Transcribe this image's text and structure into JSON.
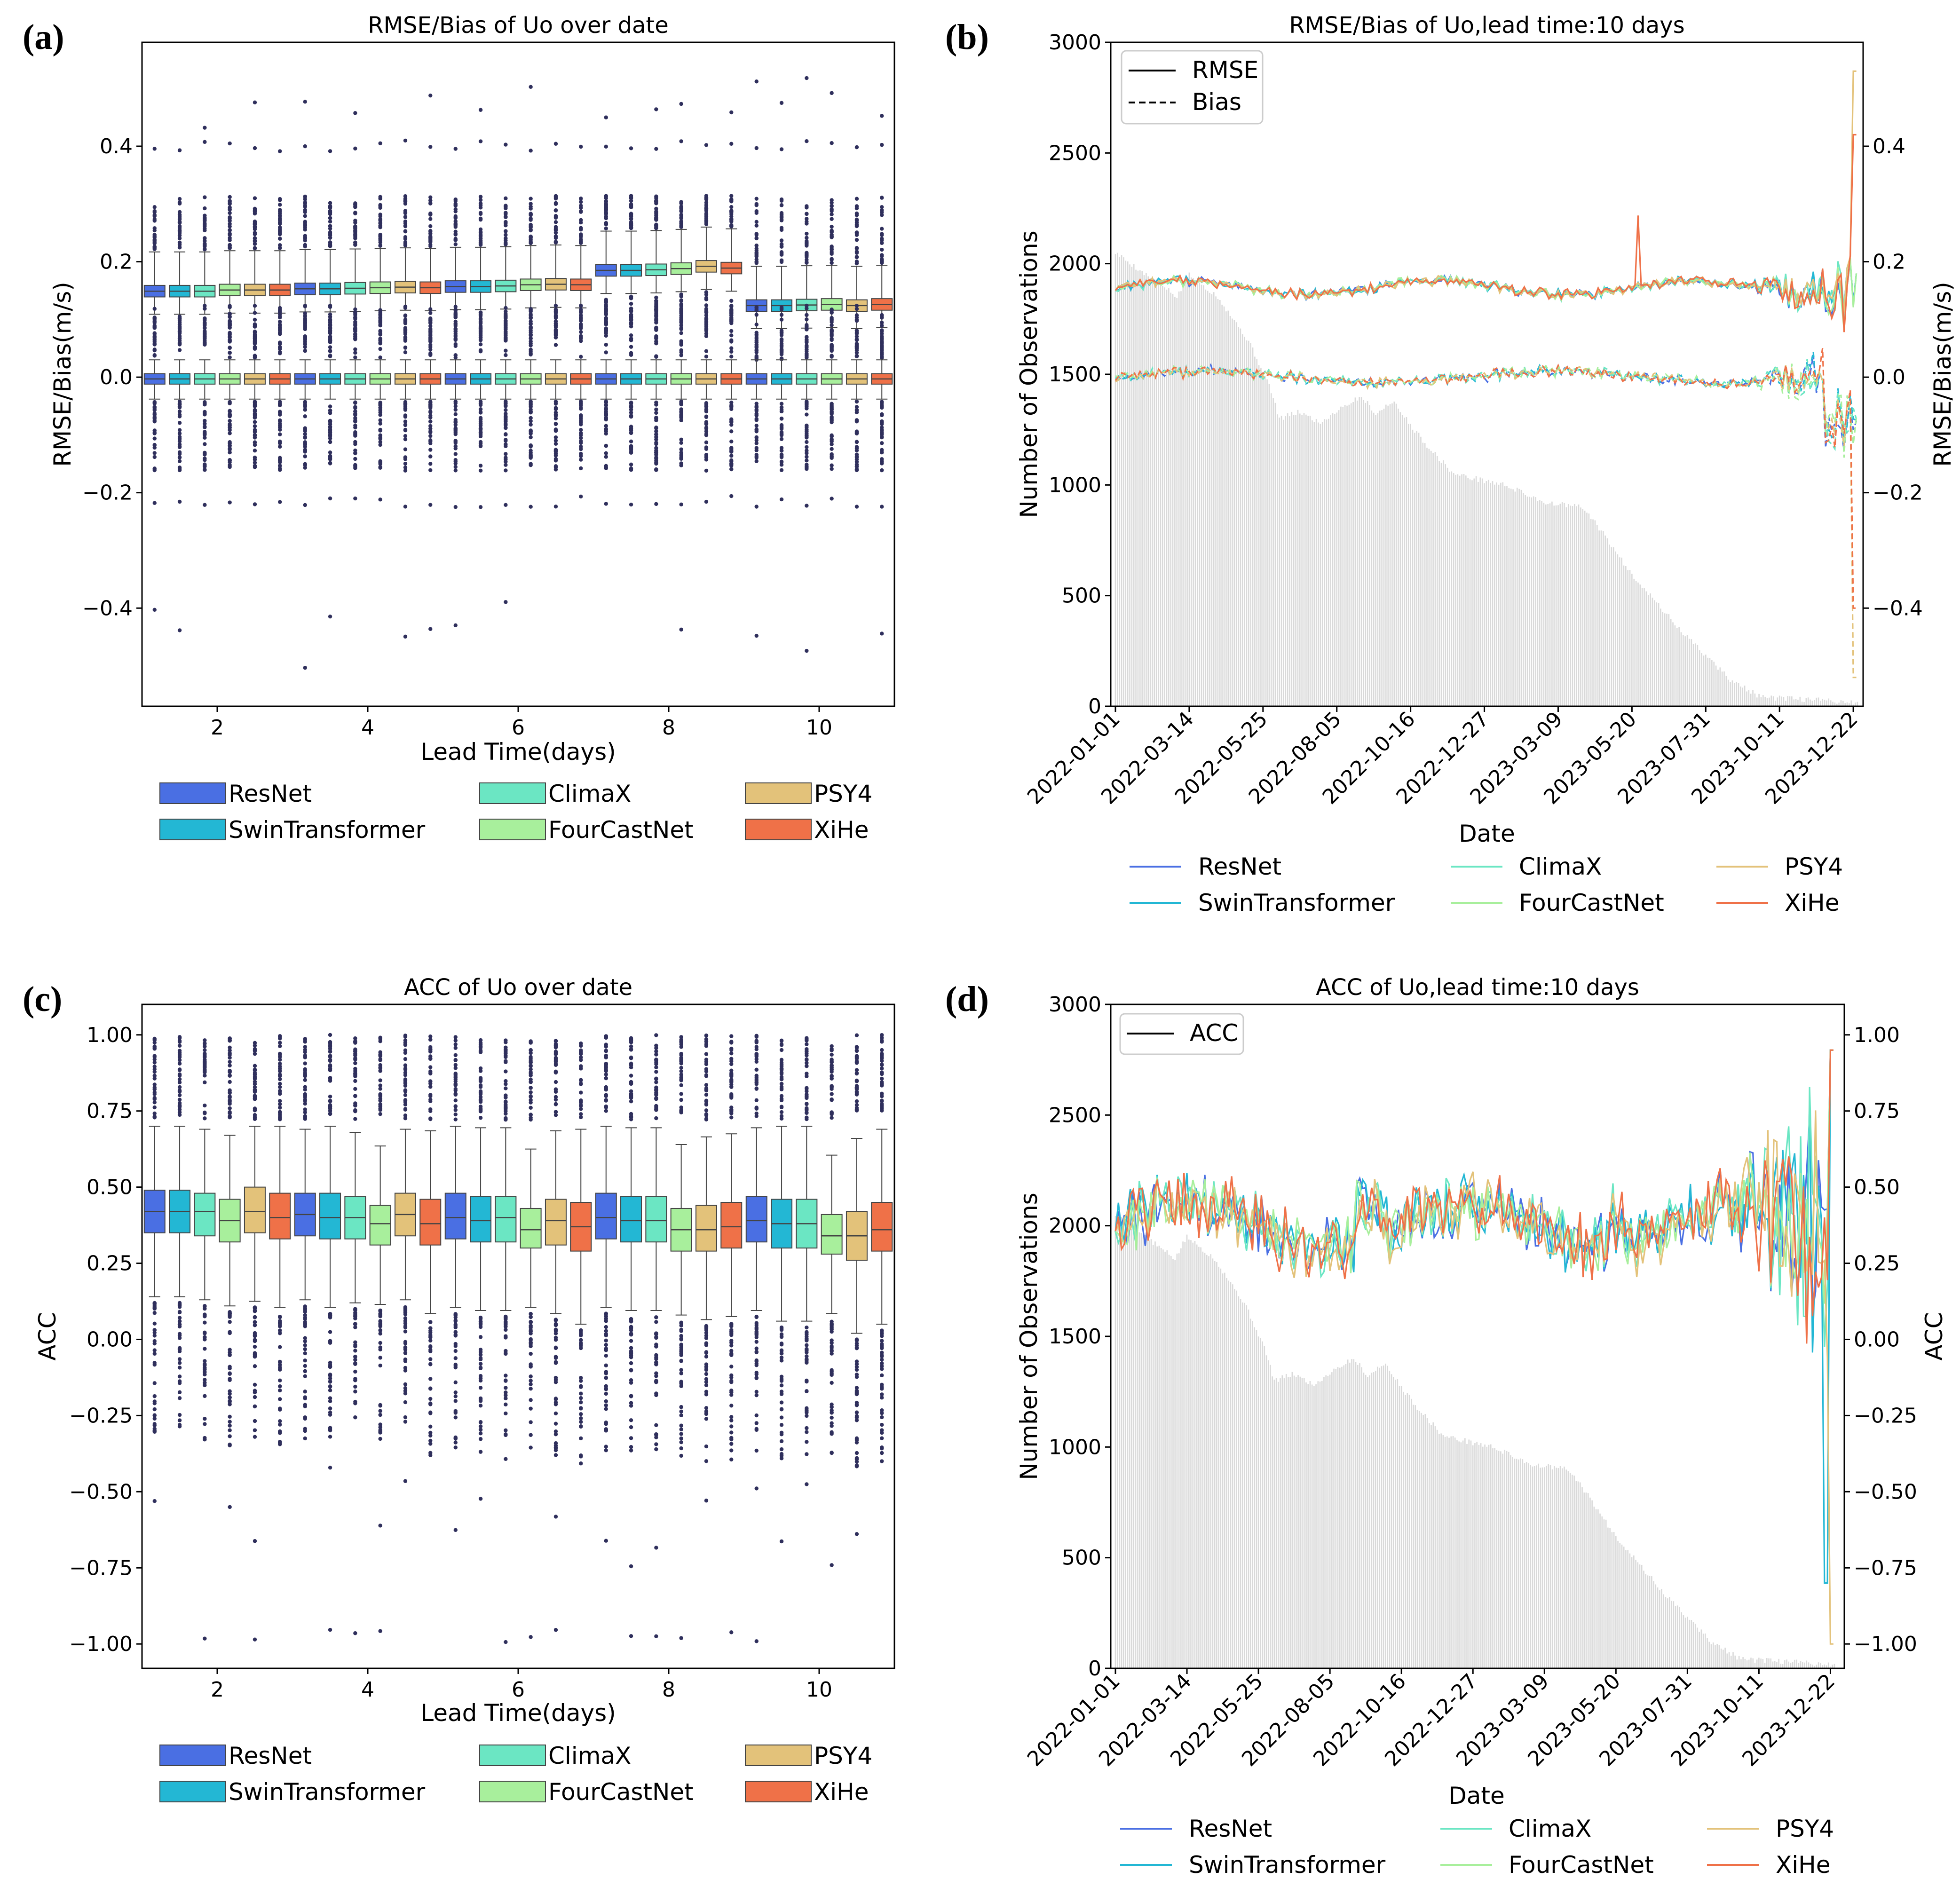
{
  "colors": {
    "ResNet": "#4a6fe3",
    "SwinTransformer": "#23b7d4",
    "ClimaX": "#6be6c3",
    "FourCastNet": "#a8ef9c",
    "PSY4": "#e3c27a",
    "XiHe": "#ef7148",
    "bars": "#d9d9d9",
    "outlier": "#2f2f5c"
  },
  "panels": {
    "a": {
      "label": "(a)"
    },
    "b": {
      "label": "(b)"
    },
    "c": {
      "label": "(c)"
    },
    "d": {
      "label": "(d)"
    }
  },
  "legend": {
    "models": [
      "ResNet",
      "SwinTransformer",
      "ClimaX",
      "FourCastNet",
      "PSY4",
      "XiHe"
    ],
    "rmse": "RMSE",
    "bias": "Bias",
    "acc": "ACC"
  },
  "chart_data": [
    {
      "id": "a",
      "type": "box",
      "title": "RMSE/Bias of Uo over date",
      "xlabel": "Lead Time(days)",
      "ylabel": "RMSE/Bias(m/s)",
      "categories": [
        2,
        4,
        6,
        8,
        10
      ],
      "xlim": [
        1,
        11
      ],
      "ylim": [
        -0.57,
        0.58
      ],
      "yticks": [
        -0.4,
        -0.2,
        0.0,
        0.2,
        0.4
      ],
      "ytick_labels": [
        "−0.4",
        "−0.2",
        "0.0",
        "0.2",
        "0.4"
      ],
      "xtick_labels": [
        "2",
        "4",
        "6",
        "8",
        "10"
      ],
      "series": [
        {
          "name": "ResNet",
          "rmse": [
            0.147,
            0.151,
            0.155,
            0.183,
            0.122
          ],
          "bias": [
            -0.01,
            -0.004,
            0.0,
            0.02,
            -0.03
          ]
        },
        {
          "name": "SwinTransformer",
          "rmse": [
            0.147,
            0.151,
            0.155,
            0.183,
            0.122
          ],
          "bias": [
            -0.011,
            -0.005,
            0.0,
            0.02,
            -0.03
          ]
        },
        {
          "name": "ClimaX",
          "rmse": [
            0.147,
            0.152,
            0.156,
            0.184,
            0.123
          ],
          "bias": [
            -0.011,
            -0.005,
            -0.001,
            0.02,
            -0.03
          ]
        },
        {
          "name": "FourCastNet",
          "rmse": [
            0.149,
            0.153,
            0.158,
            0.186,
            0.124
          ],
          "bias": [
            -0.01,
            -0.004,
            0.0,
            0.02,
            -0.03
          ]
        },
        {
          "name": "PSY4",
          "rmse": [
            0.149,
            0.154,
            0.159,
            0.19,
            0.122
          ],
          "bias": [
            -0.011,
            -0.005,
            0.0,
            0.02,
            -0.03
          ]
        },
        {
          "name": "XiHe",
          "rmse": [
            0.149,
            0.153,
            0.158,
            0.187,
            0.124
          ],
          "bias": [
            -0.012,
            -0.006,
            -0.001,
            0.02,
            -0.03
          ]
        }
      ]
    },
    {
      "id": "b",
      "type": "line+bar",
      "title": "RMSE/Bias of Uo,lead time:10 days",
      "xlabel": "Date",
      "ylabel_left": "Number of Observations",
      "ylabel_right": "RMSE/Bias(m/s)",
      "ylim_left": [
        0,
        3000
      ],
      "yticks_left": [
        0,
        500,
        1000,
        1500,
        2000,
        2500,
        3000
      ],
      "ylim_right": [
        -0.57,
        0.58
      ],
      "yticks_right": [
        -0.4,
        -0.2,
        0.0,
        0.2,
        0.4
      ],
      "ytick_labels_right": [
        "−0.4",
        "−0.2",
        "0.0",
        "0.2",
        "0.4"
      ],
      "x_dates": [
        "2022-01-01",
        "2022-03-14",
        "2022-05-25",
        "2022-08-05",
        "2022-10-16",
        "2022-12-27",
        "2023-03-09",
        "2023-05-20",
        "2023-07-31",
        "2023-10-11",
        "2023-12-22"
      ],
      "observation_profile": [
        [
          0,
          2050
        ],
        [
          30,
          1950
        ],
        [
          60,
          1850
        ],
        [
          72,
          1950
        ],
        [
          100,
          1850
        ],
        [
          130,
          1650
        ],
        [
          150,
          1450
        ],
        [
          160,
          1300
        ],
        [
          180,
          1330
        ],
        [
          200,
          1280
        ],
        [
          220,
          1350
        ],
        [
          240,
          1400
        ],
        [
          255,
          1320
        ],
        [
          270,
          1380
        ],
        [
          300,
          1200
        ],
        [
          330,
          1050
        ],
        [
          380,
          1000
        ],
        [
          420,
          920
        ],
        [
          455,
          900
        ],
        [
          470,
          820
        ],
        [
          500,
          620
        ],
        [
          550,
          350
        ],
        [
          600,
          120
        ],
        [
          630,
          40
        ],
        [
          700,
          25
        ],
        [
          725,
          15
        ]
      ],
      "rmse_mean": 0.16,
      "bias_mean": 0.0
    },
    {
      "id": "c",
      "type": "box",
      "title": "ACC of Uo over date",
      "xlabel": "Lead Time(days)",
      "ylabel": "ACC",
      "categories": [
        2,
        4,
        6,
        8,
        10
      ],
      "xlim": [
        1,
        11
      ],
      "ylim": [
        -1.08,
        1.1
      ],
      "yticks": [
        -1.0,
        -0.75,
        -0.5,
        -0.25,
        0.0,
        0.25,
        0.5,
        0.75,
        1.0
      ],
      "ytick_labels": [
        "−1.00",
        "−0.75",
        "−0.50",
        "−0.25",
        "0.00",
        "0.25",
        "0.50",
        "0.75",
        "1.00"
      ],
      "xtick_labels": [
        "2",
        "4",
        "6",
        "8",
        "10"
      ],
      "series": [
        {
          "name": "ResNet",
          "q1": [
            0.35,
            0.34,
            0.33,
            0.33,
            0.32
          ],
          "median": [
            0.42,
            0.41,
            0.4,
            0.4,
            0.39
          ],
          "q3": [
            0.49,
            0.48,
            0.48,
            0.48,
            0.47
          ]
        },
        {
          "name": "SwinTransformer",
          "q1": [
            0.35,
            0.33,
            0.32,
            0.32,
            0.3
          ],
          "median": [
            0.42,
            0.4,
            0.39,
            0.39,
            0.38
          ],
          "q3": [
            0.49,
            0.48,
            0.47,
            0.47,
            0.46
          ]
        },
        {
          "name": "ClimaX",
          "q1": [
            0.34,
            0.33,
            0.32,
            0.32,
            0.3
          ],
          "median": [
            0.42,
            0.4,
            0.4,
            0.39,
            0.38
          ],
          "q3": [
            0.48,
            0.47,
            0.47,
            0.47,
            0.46
          ]
        },
        {
          "name": "FourCastNet",
          "q1": [
            0.32,
            0.31,
            0.3,
            0.29,
            0.28
          ],
          "median": [
            0.39,
            0.38,
            0.36,
            0.36,
            0.34
          ],
          "q3": [
            0.46,
            0.44,
            0.43,
            0.43,
            0.41
          ]
        },
        {
          "name": "PSY4",
          "q1": [
            0.35,
            0.34,
            0.31,
            0.29,
            0.26
          ],
          "median": [
            0.42,
            0.41,
            0.39,
            0.36,
            0.34
          ],
          "q3": [
            0.5,
            0.48,
            0.46,
            0.44,
            0.42
          ]
        },
        {
          "name": "XiHe",
          "q1": [
            0.33,
            0.31,
            0.29,
            0.3,
            0.29
          ],
          "median": [
            0.4,
            0.38,
            0.37,
            0.37,
            0.36
          ],
          "q3": [
            0.48,
            0.46,
            0.45,
            0.45,
            0.45
          ]
        }
      ]
    },
    {
      "id": "d",
      "type": "line+bar",
      "title": "ACC of Uo,lead time:10 days",
      "xlabel": "Date",
      "ylabel_left": "Number of Observations",
      "ylabel_right": "ACC",
      "ylim_left": [
        0,
        3000
      ],
      "yticks_left": [
        0,
        500,
        1000,
        1500,
        2000,
        2500,
        3000
      ],
      "ylim_right": [
        -1.08,
        1.1
      ],
      "yticks_right": [
        -1.0,
        -0.75,
        -0.5,
        -0.25,
        0.0,
        0.25,
        0.5,
        0.75,
        1.0
      ],
      "ytick_labels_right": [
        "−1.00",
        "−0.75",
        "−0.50",
        "−0.25",
        "0.00",
        "0.25",
        "0.50",
        "0.75",
        "1.00"
      ],
      "x_dates": [
        "2022-01-01",
        "2022-03-14",
        "2022-05-25",
        "2022-08-05",
        "2022-10-16",
        "2022-12-27",
        "2023-03-09",
        "2023-05-20",
        "2023-07-31",
        "2023-10-11",
        "2023-12-22"
      ],
      "acc_mean": 0.4
    }
  ]
}
